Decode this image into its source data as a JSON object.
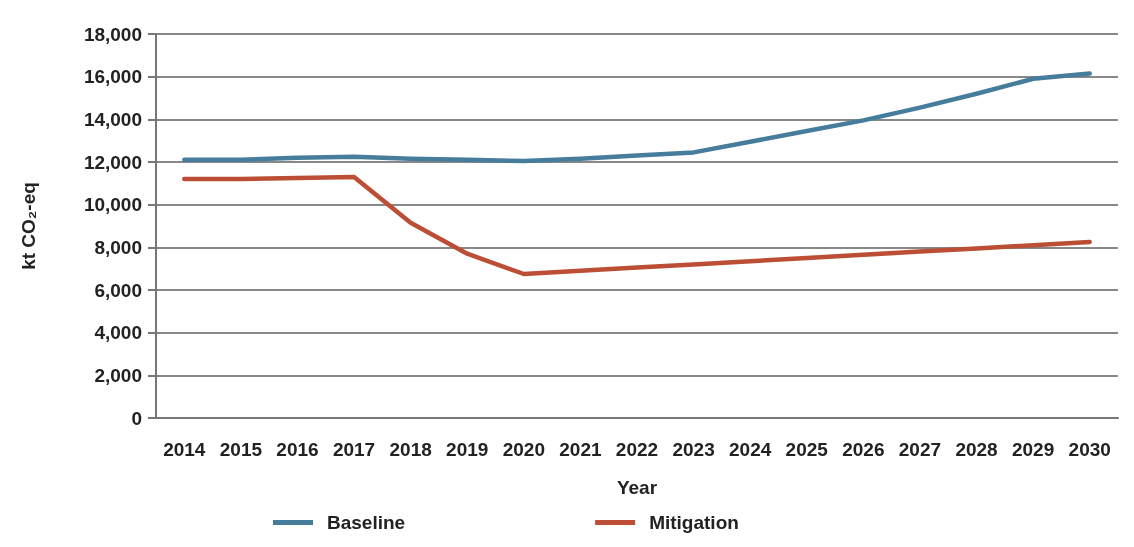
{
  "chart_data": {
    "type": "line",
    "xlabel": "Year",
    "ylabel": "kt CO₂-eq",
    "categories": [
      "2014",
      "2015",
      "2016",
      "2017",
      "2018",
      "2019",
      "2020",
      "2021",
      "2022",
      "2023",
      "2024",
      "2025",
      "2026",
      "2027",
      "2028",
      "2029",
      "2030"
    ],
    "series": [
      {
        "name": "Baseline",
        "color": "#477d9c",
        "values": [
          12100,
          12100,
          12200,
          12250,
          12150,
          12100,
          12050,
          12150,
          12300,
          12450,
          12950,
          13450,
          13950,
          14550,
          15200,
          15900,
          16150
        ]
      },
      {
        "name": "Mitigation",
        "color": "#bc4e35",
        "values": [
          11200,
          11200,
          11250,
          11300,
          9150,
          7700,
          6750,
          6900,
          7050,
          7200,
          7350,
          7500,
          7650,
          7800,
          7950,
          8100,
          8250
        ]
      }
    ],
    "ylim": [
      0,
      18000
    ],
    "yticks": [
      {
        "value": 0,
        "label": "0"
      },
      {
        "value": 2000,
        "label": "2,000"
      },
      {
        "value": 4000,
        "label": "4,000"
      },
      {
        "value": 6000,
        "label": "6,000"
      },
      {
        "value": 8000,
        "label": "8,000"
      },
      {
        "value": 10000,
        "label": "10,000"
      },
      {
        "value": 12000,
        "label": "12,000"
      },
      {
        "value": 14000,
        "label": "14,000"
      },
      {
        "value": 16000,
        "label": "16,000"
      },
      {
        "value": 18000,
        "label": "18,000"
      }
    ],
    "grid": "y",
    "legend": "bottom",
    "marker": "none",
    "line_style": "solid"
  }
}
